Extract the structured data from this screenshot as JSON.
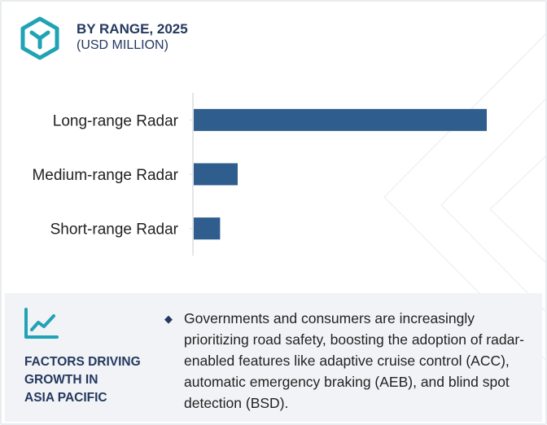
{
  "header": {
    "title": "BY RANGE, 2025",
    "subtitle": "(USD MILLION)",
    "icon": "hexagon-logo-icon"
  },
  "colors": {
    "bar": "#2f5d8e",
    "accent": "#1fa3b5",
    "heading": "#24395f",
    "panel_bg": "#f1f3f6"
  },
  "chart_data": {
    "type": "bar",
    "orientation": "horizontal",
    "categories": [
      "Long-range Radar",
      "Medium-range Radar",
      "Short-range Radar"
    ],
    "values": [
      100,
      15,
      9
    ],
    "title": "BY RANGE, 2025",
    "xlabel": "",
    "ylabel": "",
    "xlim": [
      0,
      100
    ],
    "grid": false,
    "legend": "none"
  },
  "factors": {
    "icon": "trend-chart-icon",
    "heading_lines": [
      "FACTORS DRIVING",
      "GROWTH IN",
      "ASIA PACIFIC"
    ],
    "bullet_icon": "diamond-bullet-icon",
    "text": "Governments and consumers are increasingly prioritizing road safety, boosting the adoption of radar-enabled features like adaptive cruise control (ACC), automatic emergency braking (AEB), and blind spot detection (BSD)."
  }
}
